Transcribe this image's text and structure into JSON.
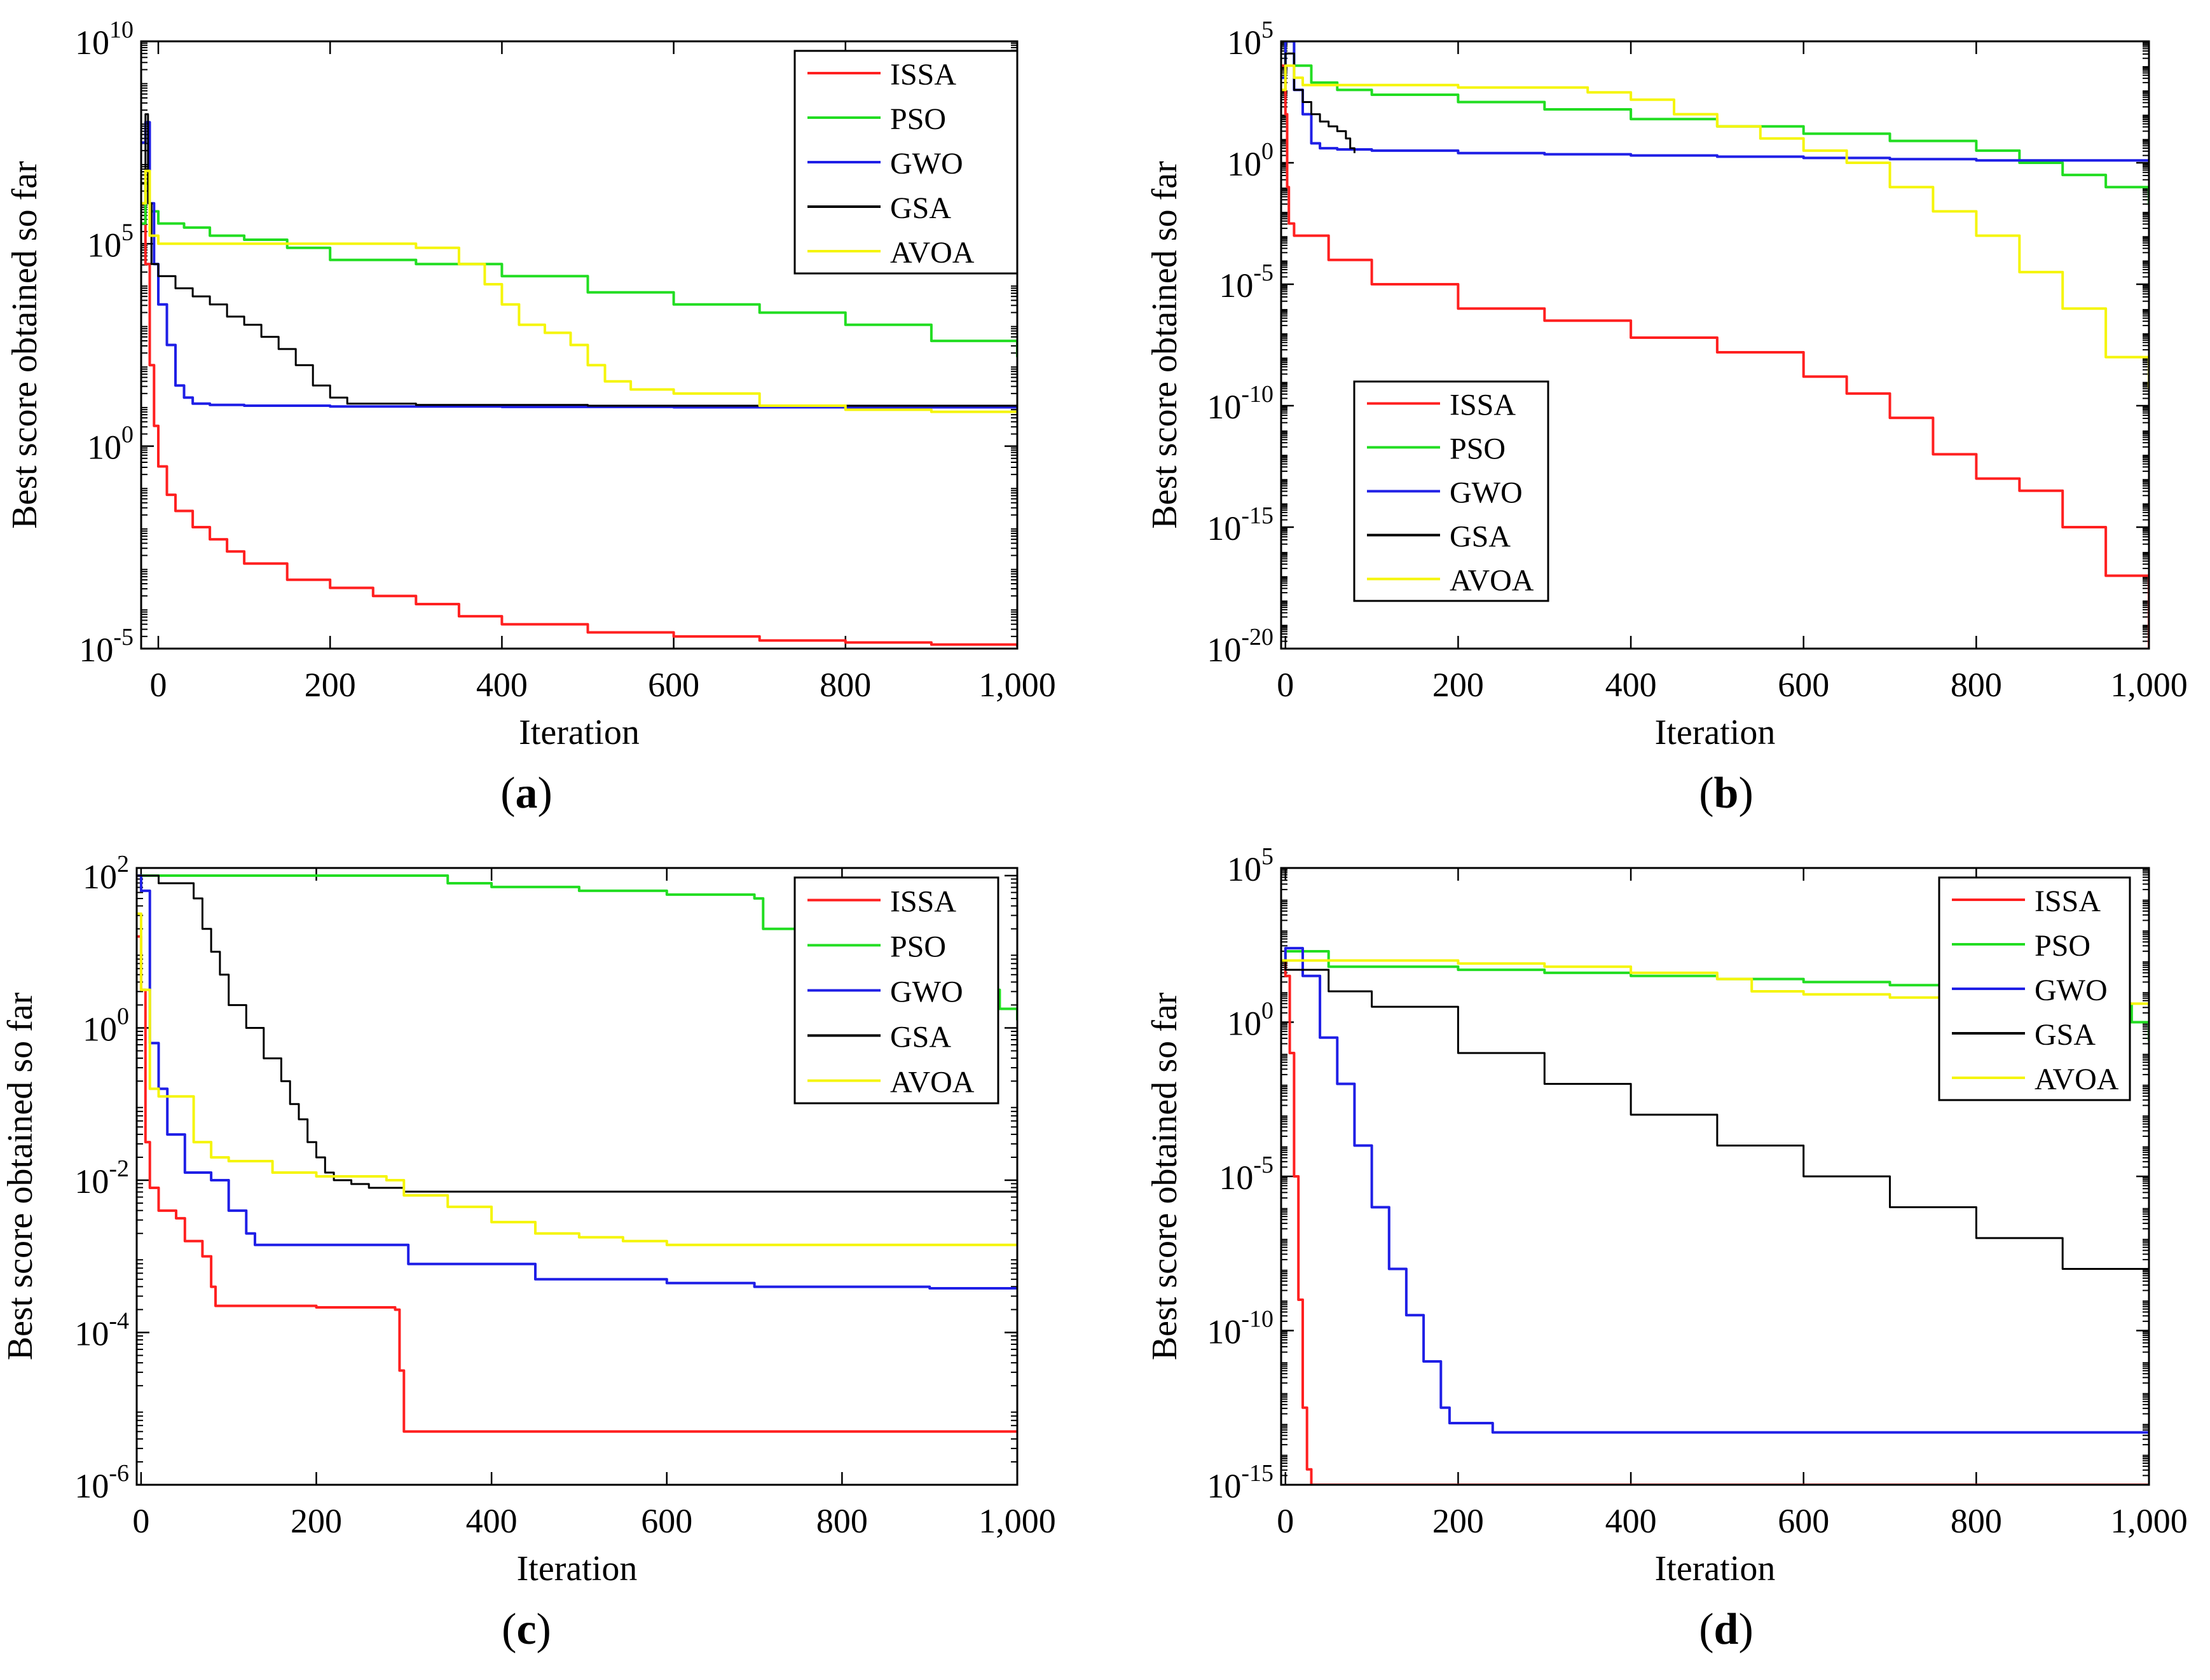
{
  "figure": {
    "series_colors": {
      "ISSA": "#ff2020",
      "PSO": "#22dd22",
      "GWO": "#1f1fe6",
      "GSA": "#000000",
      "AVOA": "#f5f50a"
    }
  },
  "chart_data": [
    {
      "type": "line",
      "panel_label": "a",
      "panel_caption": "(a)",
      "xlabel": "Iteration",
      "ylabel": "Best score obtained so far",
      "xlim": [
        -20,
        1000
      ],
      "x_ticks": [
        0,
        200,
        400,
        600,
        800,
        1000
      ],
      "x_tick_labels": [
        "0",
        "200",
        "400",
        "600",
        "800",
        "1,000"
      ],
      "y_scale": "log",
      "ylim_exp": [
        -5,
        10
      ],
      "y_ticks": [
        {
          "base": "10",
          "exp": "-5",
          "value_exp": -5
        },
        {
          "base": "10",
          "exp": "0",
          "value_exp": 0
        },
        {
          "base": "10",
          "exp": "5",
          "value_exp": 5
        },
        {
          "base": "10",
          "exp": "10",
          "value_exp": 10
        }
      ],
      "legend": {
        "position": "top-right",
        "entries": [
          "ISSA",
          "PSO",
          "GWO",
          "GSA",
          "AVOA"
        ]
      },
      "series": [
        {
          "name": "ISSA",
          "x": [
            -20,
            -15,
            -10,
            -5,
            0,
            10,
            20,
            40,
            60,
            80,
            100,
            150,
            200,
            250,
            300,
            350,
            400,
            500,
            600,
            700,
            800,
            900,
            1000
          ],
          "log10_y": [
            6.0,
            4.5,
            2.0,
            0.5,
            -0.5,
            -1.2,
            -1.6,
            -2.0,
            -2.3,
            -2.6,
            -2.9,
            -3.3,
            -3.5,
            -3.7,
            -3.9,
            -4.2,
            -4.4,
            -4.6,
            -4.7,
            -4.8,
            -4.85,
            -4.9,
            -4.95
          ]
        },
        {
          "name": "PSO",
          "x": [
            -20,
            -15,
            -10,
            0,
            30,
            60,
            100,
            150,
            200,
            300,
            400,
            500,
            600,
            700,
            800,
            900,
            1000
          ],
          "log10_y": [
            5.5,
            6.5,
            5.8,
            5.5,
            5.4,
            5.2,
            5.1,
            4.9,
            4.6,
            4.5,
            4.2,
            3.8,
            3.5,
            3.3,
            3.0,
            2.6,
            2.2
          ]
        },
        {
          "name": "GWO",
          "x": [
            -20,
            -15,
            -10,
            -5,
            0,
            10,
            20,
            30,
            40,
            60,
            100,
            200,
            300,
            400,
            600,
            800,
            1000
          ],
          "log10_y": [
            7.5,
            8.0,
            6.0,
            4.5,
            3.5,
            2.5,
            1.5,
            1.2,
            1.05,
            1.02,
            1.0,
            0.98,
            0.98,
            0.97,
            0.96,
            0.96,
            0.96
          ]
        },
        {
          "name": "GSA",
          "x": [
            -20,
            -15,
            -12,
            -8,
            0,
            20,
            40,
            60,
            80,
            100,
            120,
            140,
            160,
            180,
            200,
            220,
            300,
            500,
            700,
            1000
          ],
          "log10_y": [
            6.5,
            8.2,
            6.0,
            4.5,
            4.2,
            3.9,
            3.7,
            3.5,
            3.2,
            3.0,
            2.7,
            2.4,
            2.0,
            1.5,
            1.2,
            1.05,
            1.02,
            1.0,
            1.0,
            1.0
          ]
        },
        {
          "name": "AVOA",
          "x": [
            -20,
            -15,
            -10,
            0,
            100,
            200,
            300,
            350,
            380,
            400,
            420,
            450,
            480,
            500,
            520,
            550,
            600,
            700,
            800,
            900,
            1000
          ],
          "log10_y": [
            6.0,
            6.8,
            5.2,
            5.0,
            5.0,
            5.0,
            4.9,
            4.5,
            4.0,
            3.5,
            3.0,
            2.8,
            2.5,
            2.0,
            1.6,
            1.4,
            1.3,
            1.0,
            0.9,
            0.85,
            0.85
          ]
        }
      ]
    },
    {
      "type": "line",
      "panel_label": "b",
      "panel_caption": "(b)",
      "xlabel": "Iteration",
      "ylabel": "Best score obtained so far",
      "xlim": [
        -5,
        1000
      ],
      "x_ticks": [
        0,
        200,
        400,
        600,
        800,
        1000
      ],
      "x_tick_labels": [
        "0",
        "200",
        "400",
        "600",
        "800",
        "1,000"
      ],
      "y_scale": "log",
      "ylim_exp": [
        -20,
        5
      ],
      "y_ticks": [
        {
          "base": "10",
          "exp": "-20",
          "value_exp": -20
        },
        {
          "base": "10",
          "exp": "-15",
          "value_exp": -15
        },
        {
          "base": "10",
          "exp": "-10",
          "value_exp": -10
        },
        {
          "base": "10",
          "exp": "-5",
          "value_exp": -5
        },
        {
          "base": "10",
          "exp": "0",
          "value_exp": 0
        },
        {
          "base": "10",
          "exp": "5",
          "value_exp": 5
        }
      ],
      "legend": {
        "position": "bottom-left",
        "entries": [
          "ISSA",
          "PSO",
          "GWO",
          "GSA",
          "AVOA"
        ]
      },
      "series": [
        {
          "name": "ISSA",
          "x": [
            -5,
            0,
            2,
            4,
            10,
            50,
            100,
            200,
            300,
            400,
            500,
            600,
            650,
            700,
            750,
            800,
            850,
            900,
            950,
            1000
          ],
          "log10_y": [
            4.0,
            2.0,
            -1.0,
            -2.5,
            -3.0,
            -4.0,
            -5.0,
            -6.0,
            -6.5,
            -7.2,
            -7.8,
            -8.8,
            -9.5,
            -10.5,
            -12.0,
            -13.0,
            -13.5,
            -15.0,
            -17.0,
            -20.0
          ]
        },
        {
          "name": "PSO",
          "x": [
            -5,
            0,
            10,
            30,
            60,
            100,
            200,
            300,
            400,
            500,
            600,
            700,
            800,
            850,
            900,
            950,
            1000
          ],
          "log10_y": [
            3.5,
            5.0,
            4.0,
            3.3,
            3.0,
            2.8,
            2.5,
            2.2,
            1.8,
            1.5,
            1.2,
            0.9,
            0.5,
            0.0,
            -0.5,
            -1.0,
            -1.7
          ]
        },
        {
          "name": "GWO",
          "x": [
            -5,
            0,
            10,
            20,
            30,
            40,
            60,
            100,
            200,
            300,
            400,
            500,
            600,
            700,
            800,
            900,
            1000
          ],
          "log10_y": [
            3.5,
            5.0,
            3.0,
            2.0,
            0.8,
            0.6,
            0.55,
            0.5,
            0.4,
            0.35,
            0.3,
            0.25,
            0.2,
            0.15,
            0.1,
            0.1,
            0.1
          ]
        },
        {
          "name": "GSA",
          "x": [
            -5,
            0,
            10,
            20,
            30,
            40,
            50,
            60,
            70,
            75,
            80
          ],
          "log10_y": [
            3.0,
            4.5,
            3.0,
            2.5,
            2.0,
            1.7,
            1.5,
            1.3,
            1.0,
            0.6,
            0.4
          ]
        },
        {
          "name": "AVOA",
          "x": [
            -5,
            0,
            10,
            20,
            100,
            200,
            300,
            350,
            400,
            450,
            500,
            550,
            600,
            650,
            700,
            750,
            800,
            850,
            900,
            950,
            1000
          ],
          "log10_y": [
            3.0,
            4.0,
            3.5,
            3.2,
            3.2,
            3.1,
            3.1,
            2.9,
            2.6,
            2.0,
            1.5,
            1.0,
            0.5,
            0.0,
            -1.0,
            -2.0,
            -3.0,
            -4.5,
            -6.0,
            -8.0,
            -9.3
          ]
        }
      ]
    },
    {
      "type": "line",
      "panel_label": "c",
      "panel_caption": "(c)",
      "xlabel": "Iteration",
      "ylabel": "Best score obtained so far",
      "xlim": [
        -5,
        1000
      ],
      "x_ticks": [
        0,
        200,
        400,
        600,
        800,
        1000
      ],
      "x_tick_labels": [
        "0",
        "200",
        "400",
        "600",
        "800",
        "1,000"
      ],
      "y_scale": "log",
      "ylim_exp": [
        -6,
        2.1
      ],
      "y_ticks": [
        {
          "base": "10",
          "exp": "-6",
          "value_exp": -6
        },
        {
          "base": "10",
          "exp": "-4",
          "value_exp": -4
        },
        {
          "base": "10",
          "exp": "-2",
          "value_exp": -2
        },
        {
          "base": "10",
          "exp": "0",
          "value_exp": 0
        },
        {
          "base": "10",
          "exp": "2",
          "value_exp": 2
        }
      ],
      "legend": {
        "position": "top-right",
        "entries": [
          "ISSA",
          "PSO",
          "GWO",
          "GSA",
          "AVOA"
        ]
      },
      "series": [
        {
          "name": "ISSA",
          "x": [
            -5,
            0,
            5,
            10,
            20,
            40,
            50,
            70,
            80,
            85,
            150,
            200,
            290,
            295,
            300,
            400,
            500,
            600,
            700,
            800,
            900,
            1000
          ],
          "log10_y": [
            1.2,
            0.5,
            -1.5,
            -2.1,
            -2.4,
            -2.5,
            -2.8,
            -3.0,
            -3.4,
            -3.65,
            -3.65,
            -3.67,
            -3.7,
            -4.5,
            -5.3,
            -5.3,
            -5.3,
            -5.3,
            -5.3,
            -5.3,
            -5.3,
            -5.3
          ]
        },
        {
          "name": "PSO",
          "x": [
            -5,
            0,
            100,
            200,
            300,
            350,
            400,
            500,
            600,
            650,
            700,
            710,
            750,
            800,
            850,
            900,
            950,
            980,
            1000
          ],
          "log10_y": [
            2.0,
            2.0,
            2.0,
            2.0,
            2.0,
            1.9,
            1.85,
            1.8,
            1.75,
            1.75,
            1.7,
            1.3,
            1.25,
            1.2,
            1.0,
            0.8,
            0.5,
            0.25,
            0.1
          ]
        },
        {
          "name": "GWO",
          "x": [
            -5,
            0,
            10,
            20,
            30,
            50,
            80,
            100,
            120,
            130,
            200,
            300,
            305,
            400,
            450,
            500,
            600,
            700,
            800,
            900,
            1000
          ],
          "log10_y": [
            2.0,
            1.8,
            -0.2,
            -0.8,
            -1.4,
            -1.9,
            -2.0,
            -2.4,
            -2.7,
            -2.85,
            -2.85,
            -2.85,
            -3.1,
            -3.1,
            -3.3,
            -3.3,
            -3.35,
            -3.4,
            -3.4,
            -3.42,
            -3.42
          ]
        },
        {
          "name": "GSA",
          "x": [
            -5,
            0,
            20,
            40,
            60,
            70,
            80,
            90,
            100,
            120,
            140,
            160,
            170,
            180,
            190,
            200,
            210,
            220,
            240,
            260,
            300,
            400,
            600,
            800,
            1000
          ],
          "log10_y": [
            2.0,
            2.0,
            1.9,
            1.9,
            1.7,
            1.3,
            1.0,
            0.7,
            0.3,
            0.0,
            -0.4,
            -0.7,
            -1.0,
            -1.2,
            -1.5,
            -1.7,
            -1.9,
            -2.0,
            -2.05,
            -2.1,
            -2.15,
            -2.15,
            -2.15,
            -2.15,
            -2.15
          ]
        },
        {
          "name": "AVOA",
          "x": [
            -5,
            0,
            10,
            20,
            50,
            60,
            80,
            100,
            150,
            200,
            280,
            300,
            350,
            400,
            450,
            500,
            550,
            600,
            700,
            800,
            900,
            1000
          ],
          "log10_y": [
            1.5,
            0.5,
            -0.8,
            -0.9,
            -0.9,
            -1.5,
            -1.7,
            -1.75,
            -1.9,
            -1.95,
            -2.0,
            -2.2,
            -2.35,
            -2.55,
            -2.7,
            -2.75,
            -2.8,
            -2.85,
            -2.85,
            -2.85,
            -2.85,
            -2.85
          ]
        }
      ]
    },
    {
      "type": "line",
      "panel_label": "d",
      "panel_caption": "(d)",
      "xlabel": "Iteration",
      "ylabel": "Best score obtained so far",
      "xlim": [
        -5,
        1000
      ],
      "x_ticks": [
        0,
        200,
        400,
        600,
        800,
        1000
      ],
      "x_tick_labels": [
        "0",
        "200",
        "400",
        "600",
        "800",
        "1,000"
      ],
      "y_scale": "log",
      "ylim_exp": [
        -15,
        5
      ],
      "y_ticks": [
        {
          "base": "10",
          "exp": "-15",
          "value_exp": -15
        },
        {
          "base": "10",
          "exp": "-10",
          "value_exp": -10
        },
        {
          "base": "10",
          "exp": "-5",
          "value_exp": -5
        },
        {
          "base": "10",
          "exp": "0",
          "value_exp": 0
        },
        {
          "base": "10",
          "exp": "5",
          "value_exp": 5
        }
      ],
      "legend": {
        "position": "top-right",
        "entries": [
          "ISSA",
          "PSO",
          "GWO",
          "GSA",
          "AVOA"
        ]
      },
      "series": [
        {
          "name": "ISSA",
          "x": [
            -5,
            0,
            5,
            10,
            15,
            20,
            25,
            30,
            100,
            200,
            400,
            600,
            800,
            1000
          ],
          "log10_y": [
            2.0,
            1.5,
            -1.0,
            -5.0,
            -9.0,
            -12.5,
            -14.5,
            -15.0,
            -15.0,
            -15.0,
            -15.0,
            -15.0,
            -15.0,
            -15.0
          ]
        },
        {
          "name": "PSO",
          "x": [
            -5,
            0,
            50,
            100,
            200,
            300,
            400,
            500,
            600,
            700,
            800,
            900,
            950,
            980,
            1000
          ],
          "log10_y": [
            2.0,
            2.3,
            1.8,
            1.8,
            1.7,
            1.6,
            1.5,
            1.4,
            1.3,
            1.2,
            1.0,
            0.8,
            0.6,
            0.0,
            -0.6
          ]
        },
        {
          "name": "GWO",
          "x": [
            -5,
            0,
            20,
            40,
            60,
            80,
            100,
            120,
            140,
            160,
            180,
            190,
            200,
            230,
            240,
            400,
            600,
            800,
            1000
          ],
          "log10_y": [
            2.0,
            2.4,
            1.5,
            -0.5,
            -2.0,
            -4.0,
            -6.0,
            -8.0,
            -9.5,
            -11.0,
            -12.5,
            -13.0,
            -13.0,
            -13.0,
            -13.3,
            -13.3,
            -13.3,
            -13.3,
            -13.3
          ]
        },
        {
          "name": "GSA",
          "x": [
            -5,
            0,
            50,
            100,
            200,
            300,
            400,
            500,
            600,
            700,
            800,
            900,
            1000
          ],
          "log10_y": [
            2.0,
            1.7,
            1.0,
            0.5,
            -1.0,
            -2.0,
            -3.0,
            -4.0,
            -5.0,
            -6.0,
            -7.0,
            -8.0,
            -9.5
          ]
        },
        {
          "name": "AVOA",
          "x": [
            -5,
            0,
            50,
            100,
            200,
            300,
            400,
            500,
            540,
            600,
            700,
            800,
            900,
            1000
          ],
          "log10_y": [
            2.0,
            2.0,
            2.0,
            2.0,
            1.9,
            1.8,
            1.6,
            1.4,
            1.0,
            0.9,
            0.8,
            0.7,
            0.6,
            0.5
          ]
        }
      ]
    }
  ]
}
